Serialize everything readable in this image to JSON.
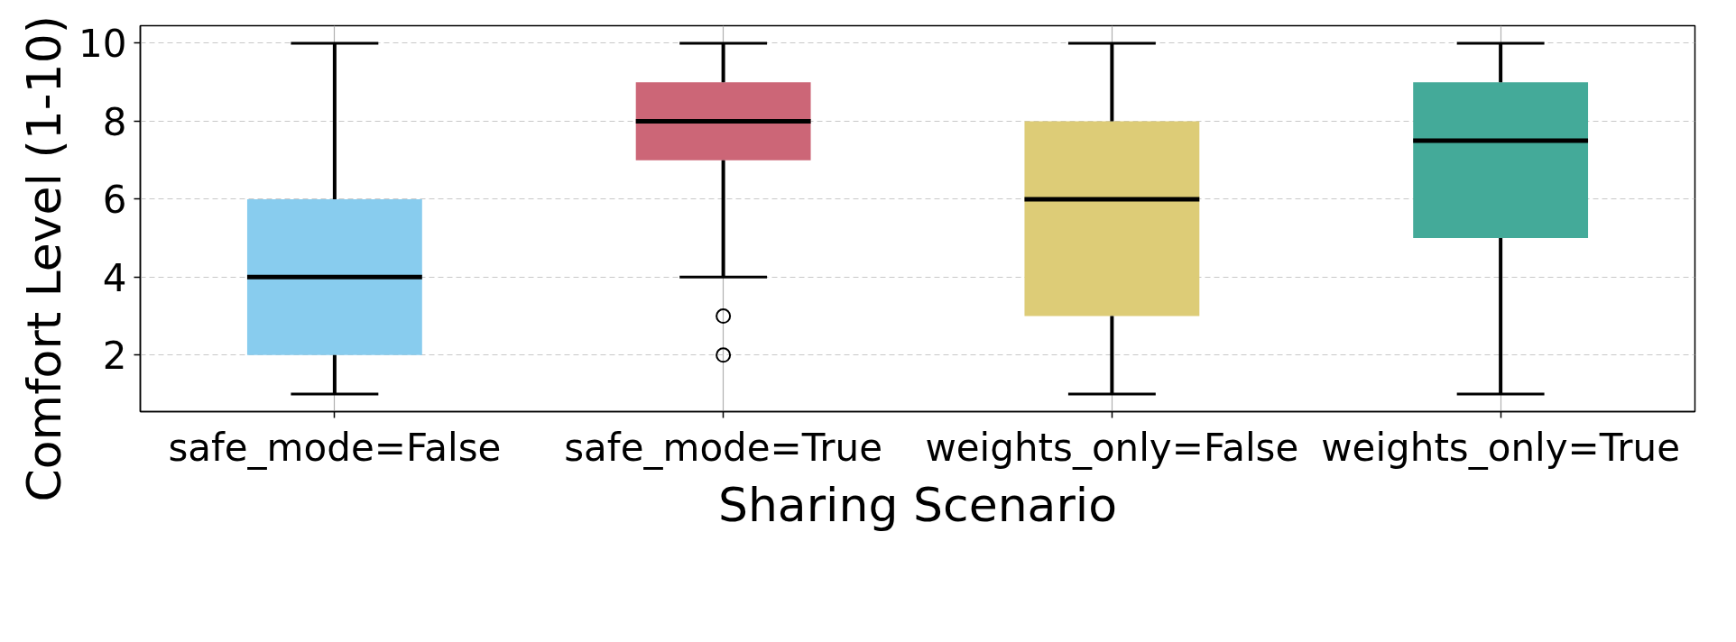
{
  "chart_data": {
    "type": "box",
    "xlabel": "Sharing Scenario",
    "ylabel": "Comfort Level (1-10)",
    "categories": [
      "safe_mode=False",
      "safe_mode=True",
      "weights_only=False",
      "weights_only=True"
    ],
    "colors": [
      "#88ccee",
      "#cc6677",
      "#ddcc77",
      "#44aa99"
    ],
    "boxes": [
      {
        "low": 1,
        "q1": 2,
        "median": 4,
        "q3": 6,
        "high": 10
      },
      {
        "low": 4,
        "q1": 7,
        "median": 8,
        "q3": 9,
        "high": 10,
        "outliers": [
          3,
          2
        ]
      },
      {
        "low": 1,
        "q1": 3,
        "median": 6,
        "q3": 8,
        "high": 10
      },
      {
        "low": 1,
        "q1": 5,
        "median": 7.5,
        "q3": 9,
        "high": 10
      }
    ],
    "ylim": [
      0.55,
      10.45
    ],
    "yticks": [
      2,
      4,
      6,
      8,
      10
    ],
    "grid": true
  }
}
